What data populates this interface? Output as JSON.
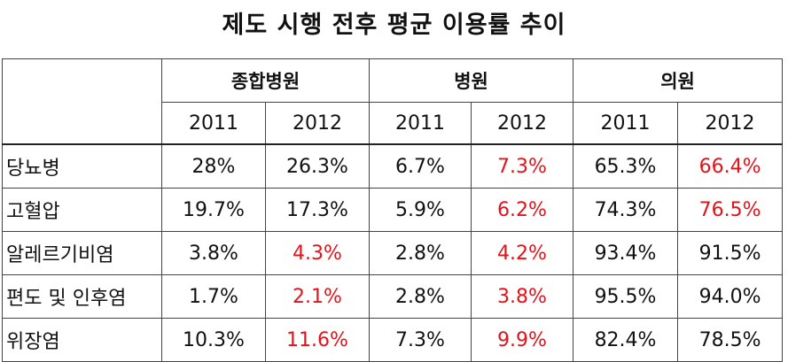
{
  "title": "제도 시행 전후 평균 이용률 추이",
  "groups": [
    "종합병원",
    "병원",
    "의원"
  ],
  "years": [
    "2011",
    "2012",
    "2011",
    "2012",
    "2011",
    "2012"
  ],
  "rows": [
    {
      "label": "당뇨병",
      "cells": [
        {
          "v": "28%",
          "hl": false
        },
        {
          "v": "26.3%",
          "hl": false
        },
        {
          "v": "6.7%",
          "hl": false
        },
        {
          "v": "7.3%",
          "hl": true
        },
        {
          "v": "65.3%",
          "hl": false
        },
        {
          "v": "66.4%",
          "hl": true
        }
      ]
    },
    {
      "label": "고혈압",
      "cells": [
        {
          "v": "19.7%",
          "hl": false
        },
        {
          "v": "17.3%",
          "hl": false
        },
        {
          "v": "5.9%",
          "hl": false
        },
        {
          "v": "6.2%",
          "hl": true
        },
        {
          "v": "74.3%",
          "hl": false
        },
        {
          "v": "76.5%",
          "hl": true
        }
      ]
    },
    {
      "label": "알레르기비염",
      "cells": [
        {
          "v": "3.8%",
          "hl": false
        },
        {
          "v": "4.3%",
          "hl": true
        },
        {
          "v": "2.8%",
          "hl": false
        },
        {
          "v": "4.2%",
          "hl": true
        },
        {
          "v": "93.4%",
          "hl": false
        },
        {
          "v": "91.5%",
          "hl": false
        }
      ]
    },
    {
      "label": "편도 및 인후염",
      "cells": [
        {
          "v": "1.7%",
          "hl": false
        },
        {
          "v": "2.1%",
          "hl": true
        },
        {
          "v": "2.8%",
          "hl": false
        },
        {
          "v": "3.8%",
          "hl": true
        },
        {
          "v": "95.5%",
          "hl": false
        },
        {
          "v": "94.0%",
          "hl": false
        }
      ]
    },
    {
      "label": "위장염",
      "cells": [
        {
          "v": "10.3%",
          "hl": false
        },
        {
          "v": "11.6%",
          "hl": true
        },
        {
          "v": "7.3%",
          "hl": false
        },
        {
          "v": "9.9%",
          "hl": true
        },
        {
          "v": "82.4%",
          "hl": false
        },
        {
          "v": "78.5%",
          "hl": false
        }
      ]
    }
  ],
  "colors": {
    "highlight": "#e3121b",
    "text": "#111111",
    "border": "#444444"
  }
}
